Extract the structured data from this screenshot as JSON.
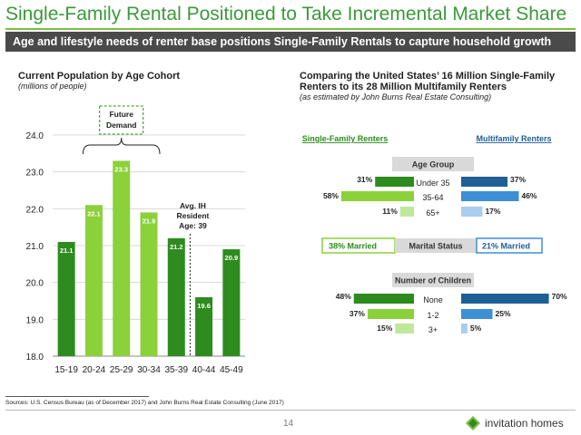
{
  "title": "Single-Family Rental Positioned to Take Incremental Market Share",
  "banner": "Age and lifestyle needs of renter base positions Single-Family Rentals to capture household growth",
  "left": {
    "title": "Current Population by Age Cohort",
    "subtitle": "(millions of people)"
  },
  "right": {
    "title": "Comparing the United States’ 16 Million Single-Family Renters to its 28 Million Multifamily Renters",
    "subtitle": "(as estimated by John Burns Real Estate Consulting)"
  },
  "chart_data": [
    {
      "type": "bar",
      "title": "Current Population by Age Cohort",
      "ylabel": "(millions of people)",
      "categories": [
        "15-19",
        "20-24",
        "25-29",
        "30-34",
        "35-39",
        "40-44",
        "45-49"
      ],
      "values": [
        21.1,
        22.1,
        23.3,
        21.9,
        21.2,
        19.6,
        20.9
      ],
      "value_labels": [
        "21.1",
        "22.1",
        "23.3",
        "21.9",
        "21.2",
        "19.6",
        "20.9"
      ],
      "ylim": [
        18.0,
        24.0
      ],
      "yticks": [
        "18.0",
        "19.0",
        "20.0",
        "21.0",
        "22.0",
        "23.0",
        "24.0"
      ],
      "colors": [
        "#2e8b1e",
        "#8bd13a",
        "#8bd13a",
        "#8bd13a",
        "#2e8b1e",
        "#2e8b1e",
        "#2e8b1e"
      ],
      "annotations": {
        "future_demand": [
          "Future",
          "Demand"
        ],
        "avg_resident": [
          "Avg. IH",
          "Resident",
          "Age: 39"
        ]
      },
      "grid": true
    },
    {
      "type": "bar",
      "orientation": "horizontal",
      "headers": {
        "single_family": "Single-Family Renters",
        "multifamily": "Multifamily Renters"
      },
      "sections": [
        {
          "label": "Age Group",
          "categories": [
            "Under 35",
            "35-64",
            "65+"
          ],
          "single_family": [
            31,
            58,
            11
          ],
          "multifamily": [
            37,
            46,
            17
          ],
          "sf_labels": [
            "31%",
            "58%",
            "11%"
          ],
          "mf_labels": [
            "37%",
            "46%",
            "17%"
          ]
        },
        {
          "label": "Marital Status",
          "single_family_label": "38% Married",
          "multifamily_label": "21% Married",
          "single_family": [
            38
          ],
          "multifamily": [
            21
          ]
        },
        {
          "label": "Number of Children",
          "categories": [
            "None",
            "1-2",
            "3+"
          ],
          "single_family": [
            48,
            37,
            15
          ],
          "multifamily": [
            70,
            25,
            5
          ],
          "sf_labels": [
            "48%",
            "37%",
            "15%"
          ],
          "mf_labels": [
            "70%",
            "25%",
            "5%"
          ]
        }
      ],
      "colors": {
        "sf_dark": "#2e8b1e",
        "sf_light": "#8bd13a",
        "sf_pale": "#bfe89a",
        "mf_dark": "#1f5f96",
        "mf_mid": "#3d8fd6",
        "mf_pale": "#a9cdee"
      }
    }
  ],
  "sources": "Sources:  U.S. Census Bureau (as of December 2017) and John Burns Real Estate Consulting (June 2017)",
  "page_number": "14",
  "logo": {
    "icon": "invitation-homes-logo-icon",
    "text": "invitation homes"
  }
}
